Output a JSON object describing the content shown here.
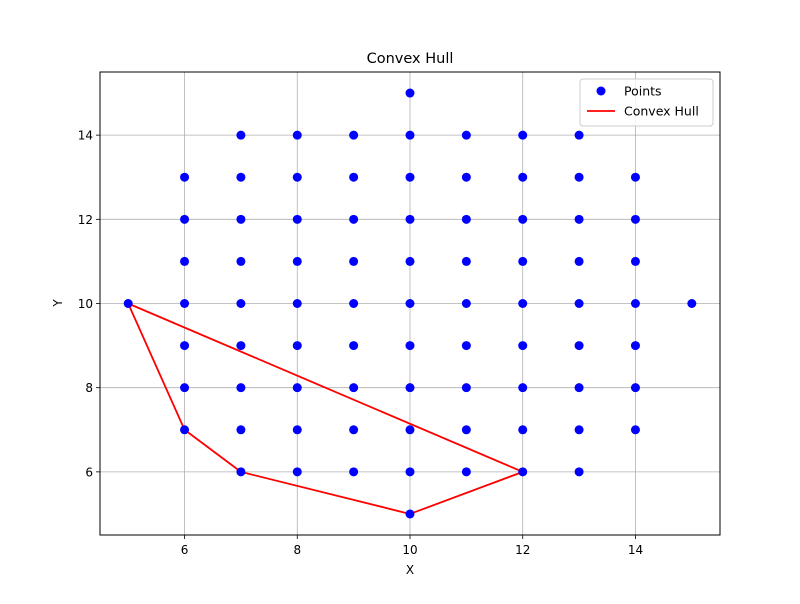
{
  "chart_data": {
    "type": "scatter",
    "title": "Convex Hull",
    "xlabel": "X",
    "ylabel": "Y",
    "xlim": [
      4.5,
      15.5
    ],
    "ylim": [
      4.5,
      15.5
    ],
    "xticks": [
      6,
      8,
      10,
      12,
      14
    ],
    "yticks": [
      6,
      8,
      10,
      12,
      14
    ],
    "grid": true,
    "legend_position": "top-right",
    "colors": {
      "points": "#0000ff",
      "hull": "#ff0000",
      "grid": "#b0b0b0",
      "axes": "#000000"
    },
    "series": [
      {
        "name": "Points",
        "kind": "scatter",
        "points": [
          [
            10,
            15
          ],
          [
            7,
            14
          ],
          [
            8,
            14
          ],
          [
            9,
            14
          ],
          [
            10,
            14
          ],
          [
            11,
            14
          ],
          [
            12,
            14
          ],
          [
            13,
            14
          ],
          [
            6,
            13
          ],
          [
            7,
            13
          ],
          [
            8,
            13
          ],
          [
            9,
            13
          ],
          [
            10,
            13
          ],
          [
            11,
            13
          ],
          [
            12,
            13
          ],
          [
            13,
            13
          ],
          [
            14,
            13
          ],
          [
            6,
            12
          ],
          [
            7,
            12
          ],
          [
            8,
            12
          ],
          [
            9,
            12
          ],
          [
            10,
            12
          ],
          [
            11,
            12
          ],
          [
            12,
            12
          ],
          [
            13,
            12
          ],
          [
            14,
            12
          ],
          [
            6,
            11
          ],
          [
            7,
            11
          ],
          [
            8,
            11
          ],
          [
            9,
            11
          ],
          [
            10,
            11
          ],
          [
            11,
            11
          ],
          [
            12,
            11
          ],
          [
            13,
            11
          ],
          [
            14,
            11
          ],
          [
            5,
            10
          ],
          [
            6,
            10
          ],
          [
            7,
            10
          ],
          [
            8,
            10
          ],
          [
            9,
            10
          ],
          [
            10,
            10
          ],
          [
            11,
            10
          ],
          [
            12,
            10
          ],
          [
            13,
            10
          ],
          [
            14,
            10
          ],
          [
            15,
            10
          ],
          [
            6,
            9
          ],
          [
            7,
            9
          ],
          [
            8,
            9
          ],
          [
            9,
            9
          ],
          [
            10,
            9
          ],
          [
            11,
            9
          ],
          [
            12,
            9
          ],
          [
            13,
            9
          ],
          [
            14,
            9
          ],
          [
            6,
            8
          ],
          [
            7,
            8
          ],
          [
            8,
            8
          ],
          [
            9,
            8
          ],
          [
            10,
            8
          ],
          [
            11,
            8
          ],
          [
            12,
            8
          ],
          [
            13,
            8
          ],
          [
            14,
            8
          ],
          [
            6,
            7
          ],
          [
            7,
            7
          ],
          [
            8,
            7
          ],
          [
            9,
            7
          ],
          [
            10,
            7
          ],
          [
            11,
            7
          ],
          [
            12,
            7
          ],
          [
            13,
            7
          ],
          [
            14,
            7
          ],
          [
            7,
            6
          ],
          [
            8,
            6
          ],
          [
            9,
            6
          ],
          [
            10,
            6
          ],
          [
            11,
            6
          ],
          [
            12,
            6
          ],
          [
            13,
            6
          ],
          [
            10,
            5
          ]
        ]
      },
      {
        "name": "Convex Hull",
        "kind": "line",
        "points": [
          [
            5,
            10
          ],
          [
            6,
            7
          ],
          [
            7,
            6
          ],
          [
            10,
            5
          ],
          [
            12,
            6
          ],
          [
            5,
            10
          ]
        ]
      }
    ]
  }
}
